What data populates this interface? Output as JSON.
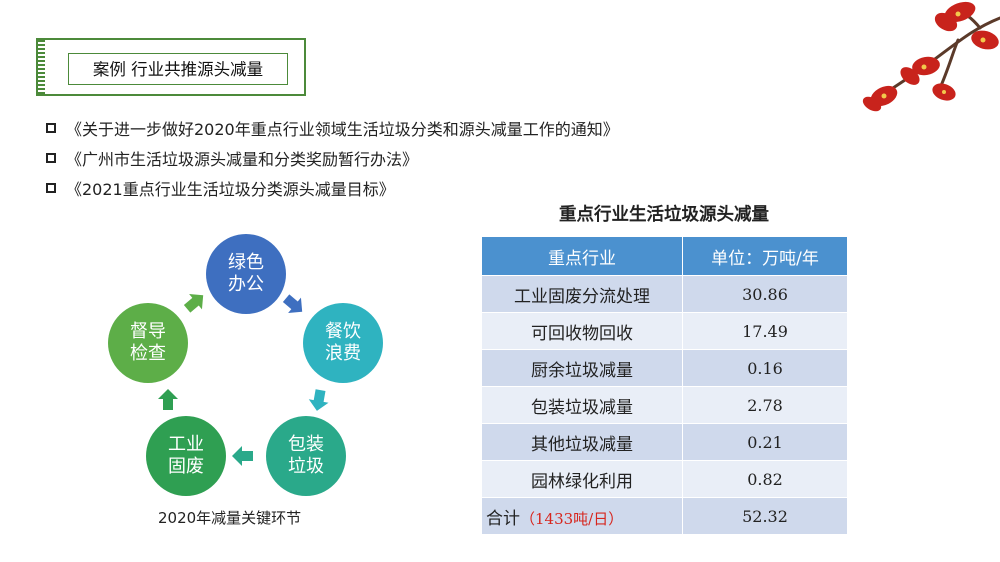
{
  "title": "案例  行业共推源头减量",
  "bullets": [
    "《关于进一步做好2020年重点行业领域生活垃圾分类和源头减量工作的通知》",
    "《广州市生活垃圾源头减量和分类奖励暂行办法》",
    "《2021重点行业生活垃圾分类源头减量目标》"
  ],
  "cycle": {
    "caption": "2020年减量关键环节",
    "nodes": [
      {
        "line1": "绿色",
        "line2": "办公",
        "color": "#3e6fc0"
      },
      {
        "line1": "餐饮",
        "line2": "浪费",
        "color": "#2fb3c0"
      },
      {
        "line1": "包装",
        "line2": "垃圾",
        "color": "#2aa98a"
      },
      {
        "line1": "工业",
        "line2": "固废",
        "color": "#2f9f52"
      },
      {
        "line1": "督导",
        "line2": "检查",
        "color": "#5dae48"
      }
    ]
  },
  "table": {
    "title": "重点行业生活垃圾源头减量",
    "headers": [
      "重点行业",
      "单位：万吨/年"
    ],
    "rows": [
      {
        "name": "工业固废分流处理",
        "value": "30.86"
      },
      {
        "name": "可回收物回收",
        "value": "17.49"
      },
      {
        "name": "厨余垃圾减量",
        "value": "0.16"
      },
      {
        "name": "包装垃圾减量",
        "value": "2.78"
      },
      {
        "name": "其他垃圾减量",
        "value": "0.21"
      },
      {
        "name": "园林绿化利用",
        "value": "0.82"
      }
    ],
    "total": {
      "label": "合计",
      "note": "（1433吨/日）",
      "value": "52.32"
    }
  },
  "colors": {
    "accent_green": "#4c8a3a",
    "table_header": "#4b91cf",
    "highlight_red": "#d7261e"
  }
}
